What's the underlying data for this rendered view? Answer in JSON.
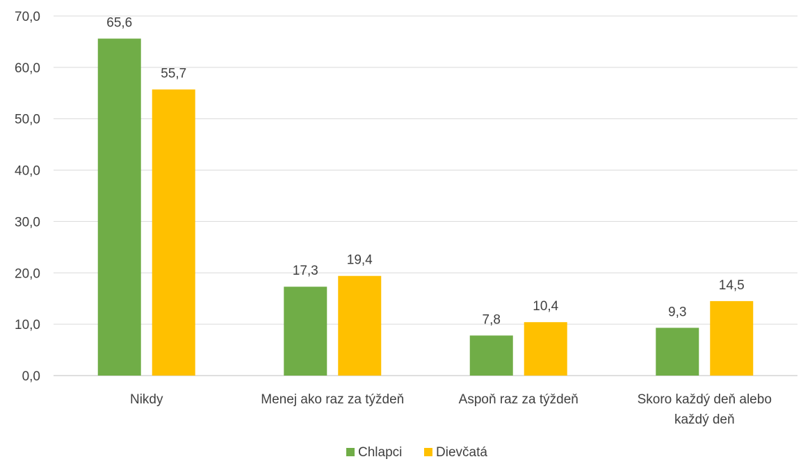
{
  "chart_data": {
    "type": "bar",
    "title": "",
    "xlabel": "",
    "ylabel": "",
    "categories": [
      [
        "Nikdy"
      ],
      [
        "Menej ako raz za týždeň"
      ],
      [
        "Aspoň raz za týždeň"
      ],
      [
        "Skoro každý deň alebo",
        "každý deň"
      ]
    ],
    "series": [
      {
        "name": "Chlapci",
        "color": "#70ad47",
        "values": [
          65.6,
          17.3,
          7.8,
          9.3
        ],
        "labels": [
          "65,6",
          "17,3",
          "7,8",
          "9,3"
        ]
      },
      {
        "name": "Dievčatá",
        "color": "#ffc000",
        "values": [
          55.7,
          19.4,
          10.4,
          14.5
        ],
        "labels": [
          "55,7",
          "19,4",
          "10,4",
          "14,5"
        ]
      }
    ],
    "ylim": [
      0,
      70
    ],
    "yticks": [
      0,
      10,
      20,
      30,
      40,
      50,
      60,
      70
    ],
    "ytick_labels": [
      "0,0",
      "10,0",
      "20,0",
      "30,0",
      "40,0",
      "50,0",
      "60,0",
      "70,0"
    ],
    "grid": true,
    "legend_position": "bottom"
  }
}
